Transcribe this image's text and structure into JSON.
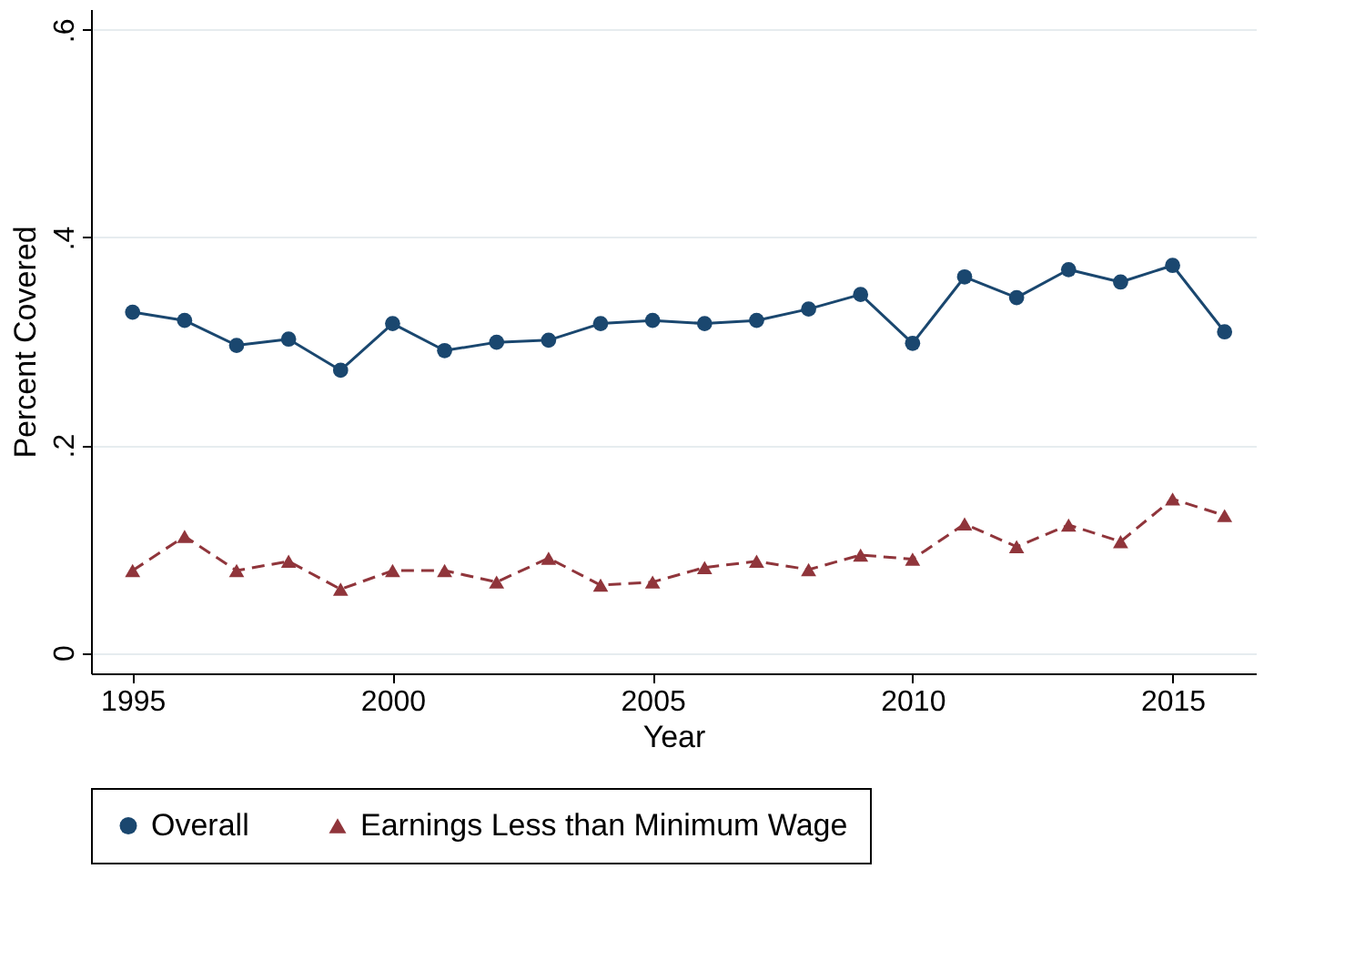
{
  "chart_data": {
    "type": "line",
    "xlabel": "Year",
    "ylabel": "Percent Covered",
    "x": [
      1995,
      1996,
      1997,
      1998,
      1999,
      2000,
      2001,
      2002,
      2003,
      2004,
      2005,
      2006,
      2007,
      2008,
      2009,
      2010,
      2011,
      2012,
      2013,
      2014,
      2015,
      2016
    ],
    "series": [
      {
        "name": "Overall",
        "color": "#1a476f",
        "marker": "circle",
        "line_style": "solid",
        "values": [
          0.328,
          0.32,
          0.296,
          0.302,
          0.272,
          0.317,
          0.291,
          0.299,
          0.301,
          0.317,
          0.32,
          0.317,
          0.32,
          0.331,
          0.345,
          0.298,
          0.362,
          0.342,
          0.369,
          0.357,
          0.373,
          0.309
        ]
      },
      {
        "name": "Earnings Less than Minimum Wage",
        "color": "#90353b",
        "marker": "triangle",
        "line_style": "dashed",
        "values": [
          0.079,
          0.112,
          0.079,
          0.088,
          0.061,
          0.079,
          0.079,
          0.068,
          0.091,
          0.065,
          0.068,
          0.082,
          0.088,
          0.08,
          0.094,
          0.09,
          0.124,
          0.102,
          0.123,
          0.107,
          0.148,
          0.132
        ]
      }
    ],
    "xlim": [
      1994.2,
      2016.6
    ],
    "xticks": [
      1995,
      2000,
      2005,
      2010,
      2015
    ],
    "ylim": [
      -0.02,
      0.62
    ],
    "yticks": [
      {
        "value": 0,
        "label": "0"
      },
      {
        "value": 0.2,
        "label": ".2"
      },
      {
        "value": 0.4,
        "label": ".4"
      },
      {
        "value": 0.6,
        "label": ".6"
      }
    ],
    "grid": "y",
    "legend": "bottom"
  }
}
